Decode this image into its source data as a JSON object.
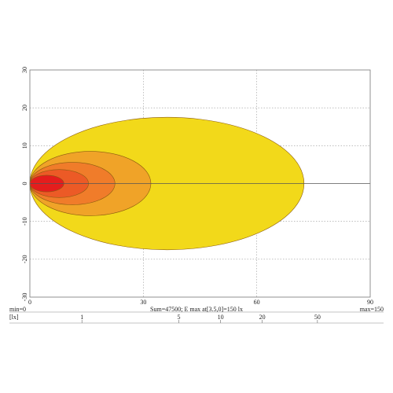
{
  "chart_data": {
    "type": "contour",
    "x_axis": {
      "range": [
        0,
        90
      ],
      "ticks": [
        "0",
        "30",
        "60",
        "90"
      ]
    },
    "y_axis": {
      "range": [
        -30,
        30
      ],
      "ticks": [
        "30",
        "20",
        "10",
        "0",
        "-10",
        "-20",
        "-30"
      ]
    },
    "grid": true,
    "grid_style": "dotted",
    "isolux_levels": [
      {
        "value_lx": 1,
        "color": "#f2d91a",
        "extent_x": [
          0,
          72.5
        ],
        "center_x": 36.25,
        "half_width_y": 17.5
      },
      {
        "value_lx": 5,
        "color": "#f0a328",
        "extent_x": [
          0,
          32
        ],
        "center_x": 16,
        "half_width_y": 8.5
      },
      {
        "value_lx": 20,
        "color": "#f07c2a",
        "extent_x": [
          0,
          22.5
        ],
        "center_x": 11.25,
        "half_width_y": 5.6
      },
      {
        "value_lx": 50,
        "color": "#ec5a26",
        "extent_x": [
          0,
          15.5
        ],
        "center_x": 7.75,
        "half_width_y": 3.7
      },
      {
        "value_lx": 150,
        "color": "#e41d1d",
        "extent_x": [
          0,
          9
        ],
        "center_x": 4.5,
        "half_width_y": 2.2
      }
    ],
    "axis_line_color": "#555555"
  },
  "footer": {
    "min_label": "min=0",
    "summary": "Sum=47500; E max at[3.5,0]=150 lx",
    "max_label": "max=150"
  },
  "legend_bar": {
    "unit_label": "[lx]",
    "ticks": [
      "1",
      "5",
      "10",
      "20",
      "50"
    ]
  }
}
